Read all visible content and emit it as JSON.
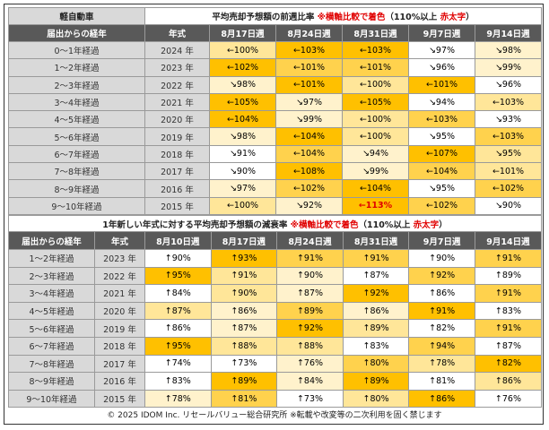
{
  "top": {
    "label": "軽自動車",
    "title": {
      "main": "平均売却予想額の前週比率 ",
      "note": "※横軸比較で着色",
      "paren_open": "（110%以上 ",
      "emphasis": "赤太字",
      "paren_close": "）"
    },
    "header": [
      "届出からの経年",
      "年式",
      "8月17日週",
      "8月24日週",
      "8月31日週",
      "9月7日週",
      "9月14日週"
    ],
    "rows": [
      [
        "0～1年経過",
        "2024 年",
        "←100%",
        "←103%",
        "←103%",
        "↘97%",
        "↘98%"
      ],
      [
        "1～2年経過",
        "2023 年",
        "←102%",
        "←101%",
        "←101%",
        "↘96%",
        "↘99%"
      ],
      [
        "2～3年経過",
        "2022 年",
        "↘98%",
        "←101%",
        "←100%",
        "←101%",
        "↘96%"
      ],
      [
        "3～4年経過",
        "2021 年",
        "←105%",
        "↘97%",
        "←105%",
        "↘94%",
        "←103%"
      ],
      [
        "4～5年経過",
        "2020 年",
        "←104%",
        "↘99%",
        "←100%",
        "←103%",
        "↘93%"
      ],
      [
        "5～6年経過",
        "2019 年",
        "↘98%",
        "←104%",
        "←100%",
        "↘95%",
        "←103%"
      ],
      [
        "6～7年経過",
        "2018 年",
        "↘91%",
        "←104%",
        "↘94%",
        "←107%",
        "↘95%"
      ],
      [
        "7～8年経過",
        "2017 年",
        "↘90%",
        "←108%",
        "↘99%",
        "←104%",
        "←101%"
      ],
      [
        "8～9年経過",
        "2016 年",
        "↘97%",
        "←102%",
        "←104%",
        "↘95%",
        "←102%"
      ],
      [
        "9～10年経過",
        "2015 年",
        "←100%",
        "↘92%",
        "←113%",
        "←102%",
        "↘90%"
      ]
    ]
  },
  "bottom": {
    "title": {
      "main": "1年新しい年式に対する平均売却予想額の減衰率 ",
      "note": "※横軸比較で着色",
      "paren_open": "（110%以上 ",
      "emphasis": "赤太字",
      "paren_close": "）"
    },
    "header": [
      "届出からの経年",
      "年式",
      "8月10日週",
      "8月17日週",
      "8月24日週",
      "8月31日週",
      "9月7日週",
      "9月14日週"
    ],
    "rows": [
      [
        "1～2年経過",
        "2023 年",
        "↑90%",
        "↑93%",
        "↑91%",
        "↑91%",
        "↑90%",
        "↑91%"
      ],
      [
        "2～3年経過",
        "2022 年",
        "↑95%",
        "↑91%",
        "↑90%",
        "↑87%",
        "↑92%",
        "↑89%"
      ],
      [
        "3～4年経過",
        "2021 年",
        "↑84%",
        "↑90%",
        "↑87%",
        "↑92%",
        "↑86%",
        "↑91%"
      ],
      [
        "4～5年経過",
        "2020 年",
        "↑87%",
        "↑86%",
        "↑89%",
        "↑86%",
        "↑91%",
        "↑83%"
      ],
      [
        "5～6年経過",
        "2019 年",
        "↑86%",
        "↑87%",
        "↑92%",
        "↑89%",
        "↑82%",
        "↑91%"
      ],
      [
        "6～7年経過",
        "2018 年",
        "↑95%",
        "↑88%",
        "↑88%",
        "↑83%",
        "↑94%",
        "↑87%"
      ],
      [
        "7～8年経過",
        "2017 年",
        "↑74%",
        "↑73%",
        "↑76%",
        "↑80%",
        "↑78%",
        "↑82%"
      ],
      [
        "8～9年経過",
        "2016 年",
        "↑83%",
        "↑89%",
        "↑84%",
        "↑89%",
        "↑81%",
        "↑86%"
      ],
      [
        "9～10年経過",
        "2015 年",
        "↑78%",
        "↑81%",
        "↑73%",
        "↑80%",
        "↑86%",
        "↑76%"
      ]
    ]
  },
  "footer": "© 2025 IDOM Inc. リセールバリュー総合研究所 ※転載や改変等の二次利用を固く禁じます"
}
